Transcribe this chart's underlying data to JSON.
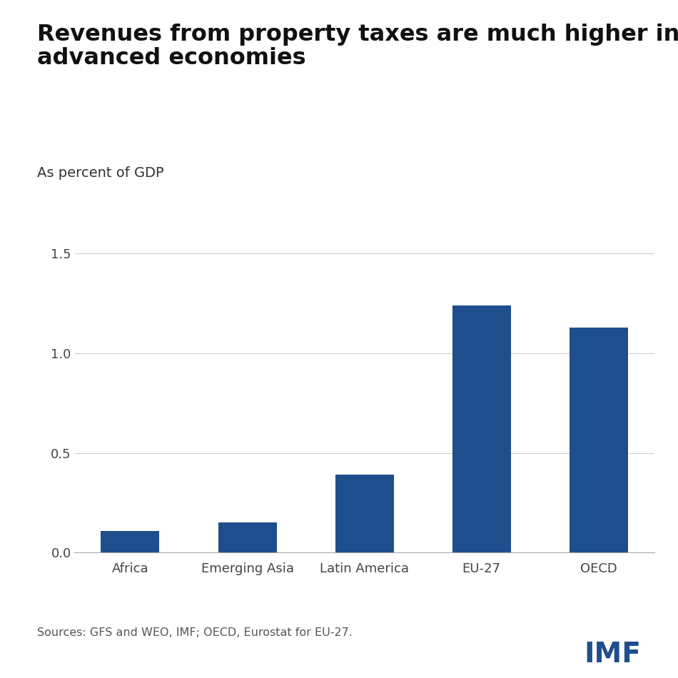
{
  "title_line1": "Revenues from property taxes are much higher in",
  "title_line2": "advanced economies",
  "subtitle": "As percent of GDP",
  "categories": [
    "Africa",
    "Emerging Asia",
    "Latin America",
    "EU-27",
    "OECD"
  ],
  "values": [
    0.11,
    0.15,
    0.39,
    1.24,
    1.13
  ],
  "bar_color": "#1f4e8c",
  "ylim": [
    0,
    1.7
  ],
  "yticks": [
    0.0,
    0.5,
    1.0,
    1.5
  ],
  "ytick_labels": [
    "0.0",
    "0.5",
    "1.0",
    "1.5"
  ],
  "source_text": "Sources: GFS and WEO, IMF; OECD, Eurostat for EU-27.",
  "imf_text": "IMF",
  "background_color": "#ffffff",
  "grid_color": "#cccccc",
  "title_fontsize": 23,
  "subtitle_fontsize": 14,
  "tick_fontsize": 13,
  "source_fontsize": 11.5,
  "imf_fontsize": 28,
  "bar_width": 0.5
}
